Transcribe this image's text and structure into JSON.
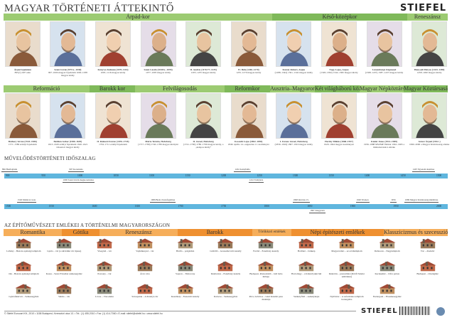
{
  "header": {
    "title": "MAGYAR TÖRTÉNETI ÁTTEKINTŐ",
    "logo": "STIEFEL"
  },
  "colors": {
    "era_green": "#9ccb72",
    "era_green_dark": "#7fb95a",
    "arch_orange": "#f6ae5a",
    "arch_orange_dark": "#ef9030",
    "timeline_blue": "#5fb6de"
  },
  "eras_top": [
    {
      "label": "Árpád-kor"
    },
    {
      "label": "Késő-középkor"
    },
    {
      "label": "Reneszánsz"
    }
  ],
  "rulers_top": [
    {
      "name": "Árpád fejedelem",
      "info": "895(?)–907 után"
    },
    {
      "name": "Szent István (975 k.–1038)",
      "info": "997–1000 magyar fejedelem 1000–1038 magyar király"
    },
    {
      "name": "Könyves Kálmán (1070–1116)",
      "info": "1095–1116 magyar király"
    },
    {
      "name": "Szent László (1040 k.–1095)",
      "info": "1077–1095 magyar király"
    },
    {
      "name": "II. András (1176/77–1235)",
      "info": "1205–1235 magyar király"
    },
    {
      "name": "IV. Béla (1206–1270)",
      "info": "1235–1270 magyar király"
    },
    {
      "name": "Károly Róbert, Anjou",
      "info": "(1288–1342) 1301–1342 magyar király"
    },
    {
      "name": "Nagy Lajos, Anjou",
      "info": "(1326–1382) 1342–1382 magyar király"
    },
    {
      "name": "Luxemburgi Zsigmond",
      "info": "(1368–1437) 1387–1437 magyar király"
    },
    {
      "name": "Hunyadi Mátyás (1443–1490)",
      "info": "1458–1490 magyar király"
    }
  ],
  "eras_bottom": [
    {
      "label": "Reformáció"
    },
    {
      "label": "Barokk kor"
    },
    {
      "label": "Felvilágosodás"
    },
    {
      "label": "Reformkor"
    },
    {
      "label": "Ausztria–Magyarország"
    },
    {
      "label": "Két világháború között"
    },
    {
      "label": "Magyar Népköztársaság"
    },
    {
      "label": "Magyar Köztársaság"
    }
  ],
  "rulers_bottom": [
    {
      "name": "Báthory István (1533–1586)",
      "info": "1571–1586 erdélyi fejedelem"
    },
    {
      "name": "Bethlen Gábor (1580–1629)",
      "info": "1613–1629 erdélyi fejedelem 1620–1621 választott magyar király"
    },
    {
      "name": "II. Rákóczi Ferenc (1676–1735)",
      "info": "1704–1711 erdélyi fejedelem"
    },
    {
      "name": "Mária Terézia, Habsburg",
      "info": "(1717–1780) 1740–1780 magyar királynő"
    },
    {
      "name": "II. József, Habsburg",
      "info": "(1741–1790) 1780–1790 magyar király, a „kalapos király”"
    },
    {
      "name": "Kossuth Lajos (1802–1894)",
      "info": "1849. április 14.–augusztus 11. kormányzó"
    },
    {
      "name": "I. Ferenc József, Habsburg",
      "info": "(1830–1916) 1867–1916 magyar király"
    },
    {
      "name": "Horthy Miklós (1868–1957)",
      "info": "1920–1944 magyar kormányzó"
    },
    {
      "name": "Kádár János (1912–1989)",
      "info": "1956–1988 MSZMP főtitkár 1961–1965 a minisztertanács elnöke"
    },
    {
      "name": "Göncz Árpád (1922–)",
      "info": "1990–2000 a Magyar Köztársaság elnöke"
    }
  ],
  "timeline": {
    "title": "MŰVELŐDÉSTÖRTÉNETI IDŐSZALAG",
    "row1_ticks": [
      "900",
      "950",
      "1000",
      "1050",
      "1100",
      "1150",
      "1200",
      "1250",
      "1300",
      "1350",
      "1400",
      "1450",
      "1500"
    ],
    "row2_ticks": [
      "1500",
      "1550",
      "1600",
      "1650",
      "1700",
      "1750",
      "1800",
      "1850",
      "1900",
      "1950",
      "2000"
    ],
    "row1_events": [
      {
        "text": "896 Honfoglalás",
        "year": 896
      },
      {
        "text": "997 Koronázás",
        "year": 997
      },
      {
        "text": "1000 Szent István megkoronázása",
        "year": 1000
      },
      {
        "text": "1222 Aranybulla",
        "year": 1222
      },
      {
        "text": "1241 Tatárjárás",
        "year": 1241
      },
      {
        "text": "1467 Egyetem alapítása",
        "year": 1467
      }
    ],
    "row2_events": [
      {
        "text": "1526 Mohácsi csata",
        "year": 1526
      },
      {
        "text": "1686 Buda visszafoglalása",
        "year": 1686
      },
      {
        "text": "1848 március 15.",
        "year": 1848
      },
      {
        "text": "1867 Kiegyezés",
        "year": 1867
      },
      {
        "text": "1920 Trianon",
        "year": 1920
      },
      {
        "text": "1956",
        "year": 1956
      },
      {
        "text": "1989 Magyar Köztársaság kikiáltása",
        "year": 1989
      }
    ]
  },
  "architecture": {
    "title": "AZ ÉPÍTŐMŰVÉSZET EMLÉKEI A TÖRTÉNELMI MAGYARORSZÁGON",
    "styles": [
      {
        "label": "Romantika"
      },
      {
        "label": "Gótika"
      },
      {
        "label": "Reneszánsz"
      },
      {
        "label": "Barokk"
      },
      {
        "label": "Törökkori emlékek"
      },
      {
        "label": "Népi építészeti emlékek"
      },
      {
        "label": "Klasszicizmus és szecesszió"
      }
    ],
    "buildings": [
      "Lébény – Bencés apátsági templom",
      "Ják – Bencés apátsági templom",
      "Gyulafehérvár – Székesegyház",
      "Gyula – vár (a síkvidéki vár típusa)",
      "Kassa – Szent Erzsébet székesegyház",
      "Siklós – vár",
      "Visegrád – vár",
      "Pozsony – vár",
      "Lőcse – Városháza",
      "Vajdahunyad – vár",
      "Árva vára",
      "Sárospatak – A Perényi-vár",
      "Bártfa – polgárház",
      "Sopron – Tűztorony",
      "Keszthely – Festetich kastély",
      "Gödöllő – Grassalkovich kastély",
      "Kismarton – Esterházy kastély",
      "Kalocsa – Székesegyház",
      "Fertőd – Esterházy kastély",
      "Budapest, Rózsadomb – Gül baba türbéje",
      "Pécs, belváros – Gázi Kászim pasa dzsámija",
      "Hollókő – falukép",
      "Hortobágy – a Kilenclyukú híd",
      "Székelyföld – székelykapu",
      "Magyarvalkó – az erődtemplom",
      "Kiskőrös – parasztház (Petőfi Sándor szülőháza)",
      "Nyírbátor – A református templom harangtába",
      "Debrecen – Nagytemplom",
      "Kecskemét – Cifra palota",
      "Esztergom – Főszékesegyház",
      "Vác – diadalív",
      "Budapest – Országház"
    ]
  },
  "footer": {
    "text": "© Stiefel Eurocart Kft., 2010 • 1158 Budapest, Keresztúri utca 13. • Tel.: (1) 455-2010 • Fax: (1) 414-7060 • E-mail: stiefel@stiefel.hu • www.stiefel.hu",
    "logo": "STIEFEL"
  }
}
